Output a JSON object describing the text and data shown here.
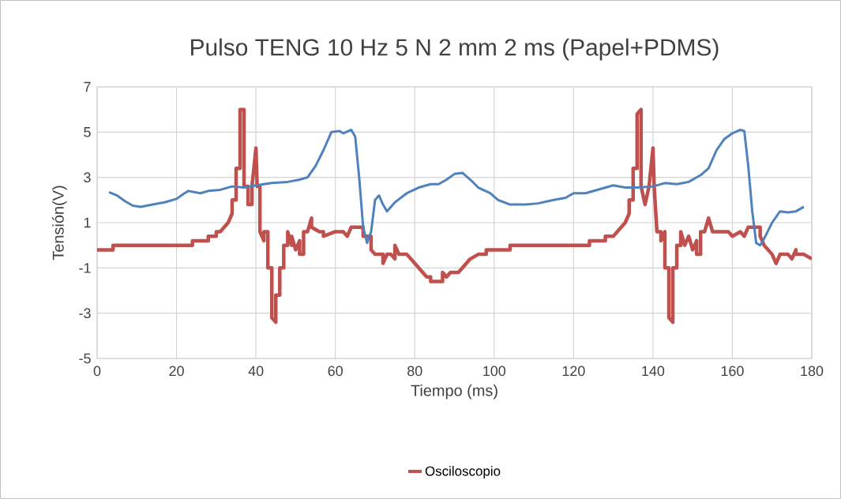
{
  "chart_data": {
    "type": "line",
    "title": "Pulso TENG 10 Hz 5 N 2 mm 2 ms (Papel+PDMS)",
    "xlabel": "Tiempo (ms)",
    "ylabel": "Tensión(V)",
    "xlim": [
      0,
      180
    ],
    "xticks": [
      0,
      20,
      40,
      60,
      80,
      100,
      120,
      140,
      160,
      180
    ],
    "ylim": [
      -5,
      7
    ],
    "yticks": [
      -5,
      -3,
      -1,
      1,
      3,
      5,
      7
    ],
    "grid": true,
    "legend": "bottom",
    "series": [
      {
        "name": "Osciloscopio",
        "color": "#c0504d",
        "x": [
          0,
          4,
          4,
          24,
          24,
          28,
          28,
          30,
          30,
          31,
          32,
          33,
          34,
          34,
          35,
          35,
          36,
          36,
          37,
          37,
          38,
          38,
          39,
          39,
          40,
          40.3,
          41,
          41,
          42,
          42,
          43,
          43,
          44,
          44,
          45,
          45,
          46,
          46,
          47,
          47,
          48,
          48,
          49,
          49,
          50,
          51,
          51,
          52,
          52,
          53,
          54,
          54,
          56,
          57,
          57,
          60,
          62,
          63,
          64,
          67,
          67,
          69,
          69,
          70,
          72,
          72,
          73,
          74,
          75,
          75,
          76,
          78,
          79,
          80,
          81,
          82,
          83,
          84,
          84,
          87,
          87,
          88,
          89,
          91,
          92,
          93,
          94,
          96,
          98,
          98,
          100,
          104,
          104,
          124,
          124,
          128,
          128,
          130,
          131,
          132,
          133,
          134,
          134,
          135,
          135,
          136,
          136,
          137,
          137,
          138,
          139,
          140,
          140.3,
          141,
          142,
          142,
          143,
          143,
          144,
          144,
          145,
          145,
          146,
          146,
          147,
          147,
          148,
          149,
          150,
          151,
          151,
          152,
          152,
          153,
          154,
          155,
          157,
          159,
          160,
          162,
          163,
          164,
          167,
          167,
          168,
          169,
          170,
          171,
          172,
          174,
          175,
          176,
          176,
          178,
          180
        ],
        "values": [
          -0.2,
          -0.2,
          0,
          0,
          0.2,
          0.2,
          0.4,
          0.4,
          0.6,
          0.6,
          0.8,
          1.0,
          1.4,
          2.0,
          2.0,
          3.4,
          3.4,
          6.0,
          6.0,
          2.6,
          2.6,
          1.8,
          1.8,
          2.6,
          4.3,
          2.6,
          2.6,
          0.6,
          0.2,
          0.6,
          0.6,
          -1.0,
          -1.0,
          -3.2,
          -3.4,
          -2.2,
          -2.2,
          -1.0,
          -1.0,
          0,
          0,
          0.6,
          0,
          0.4,
          -0.2,
          0.2,
          -0.4,
          -0.4,
          0.6,
          0.6,
          1.2,
          0.8,
          0.6,
          0.6,
          0.4,
          0.6,
          0.6,
          0.4,
          0.8,
          0.8,
          0.4,
          0.4,
          -0.2,
          -0.4,
          -0.4,
          -0.8,
          -0.4,
          -0.4,
          -0.6,
          0,
          -0.4,
          -0.4,
          -0.6,
          -0.8,
          -1.0,
          -1.2,
          -1.4,
          -1.4,
          -1.6,
          -1.6,
          -1.2,
          -1.4,
          -1.2,
          -1.2,
          -1.0,
          -0.8,
          -0.6,
          -0.4,
          -0.4,
          -0.2,
          -0.2,
          -0.2,
          0,
          0,
          0.2,
          0.2,
          0.4,
          0.4,
          0.6,
          0.8,
          1.0,
          1.4,
          2.0,
          2.0,
          3.4,
          3.4,
          5.8,
          6.0,
          2.6,
          1.8,
          2.6,
          4.3,
          2.6,
          0.6,
          0.6,
          0.2,
          0.6,
          -1.0,
          -1.0,
          -3.2,
          -3.4,
          -1.0,
          -1.0,
          0,
          0,
          0.6,
          0,
          0.4,
          -0.2,
          0.2,
          -0.4,
          -0.4,
          0.6,
          0.6,
          1.2,
          0.6,
          0.6,
          0.6,
          0.4,
          0.6,
          0.4,
          0.8,
          0.8,
          0.4,
          0,
          -0.2,
          -0.4,
          -0.8,
          -0.4,
          -0.4,
          -0.6,
          -0.2,
          -0.4,
          -0.4,
          -0.6
        ]
      },
      {
        "color": "#4f81bd",
        "x": [
          3,
          5,
          7,
          9,
          11,
          14,
          17,
          20,
          22,
          23,
          26,
          28,
          31,
          34,
          37,
          40,
          44,
          48,
          51,
          53,
          55,
          57,
          59,
          61,
          62,
          64,
          65,
          66,
          67,
          68,
          69,
          70,
          71,
          72,
          73,
          75,
          78,
          81,
          84,
          86,
          88,
          90,
          92,
          94,
          96,
          99,
          101,
          104,
          108,
          111,
          115,
          118,
          120,
          123,
          127,
          130,
          133,
          136,
          140,
          143,
          146,
          149,
          152,
          154,
          156,
          158,
          160,
          162,
          163,
          164,
          165,
          166,
          167,
          168,
          170,
          172,
          174,
          176,
          178
        ],
        "values": [
          2.35,
          2.2,
          1.95,
          1.75,
          1.7,
          1.8,
          1.9,
          2.05,
          2.3,
          2.4,
          2.3,
          2.4,
          2.45,
          2.6,
          2.55,
          2.65,
          2.75,
          2.8,
          2.9,
          3.0,
          3.5,
          4.2,
          5.0,
          5.05,
          4.95,
          5.1,
          4.8,
          3.0,
          0.8,
          0.1,
          0.6,
          2.0,
          2.2,
          1.8,
          1.5,
          1.9,
          2.3,
          2.55,
          2.7,
          2.7,
          2.9,
          3.15,
          3.2,
          2.9,
          2.55,
          2.3,
          2.0,
          1.8,
          1.8,
          1.85,
          2.0,
          2.1,
          2.3,
          2.3,
          2.5,
          2.65,
          2.55,
          2.55,
          2.6,
          2.75,
          2.7,
          2.8,
          3.1,
          3.4,
          4.2,
          4.7,
          4.95,
          5.1,
          5.05,
          3.5,
          1.5,
          0.1,
          0.0,
          0.3,
          1.0,
          1.5,
          1.45,
          1.5,
          1.7
        ]
      }
    ]
  }
}
